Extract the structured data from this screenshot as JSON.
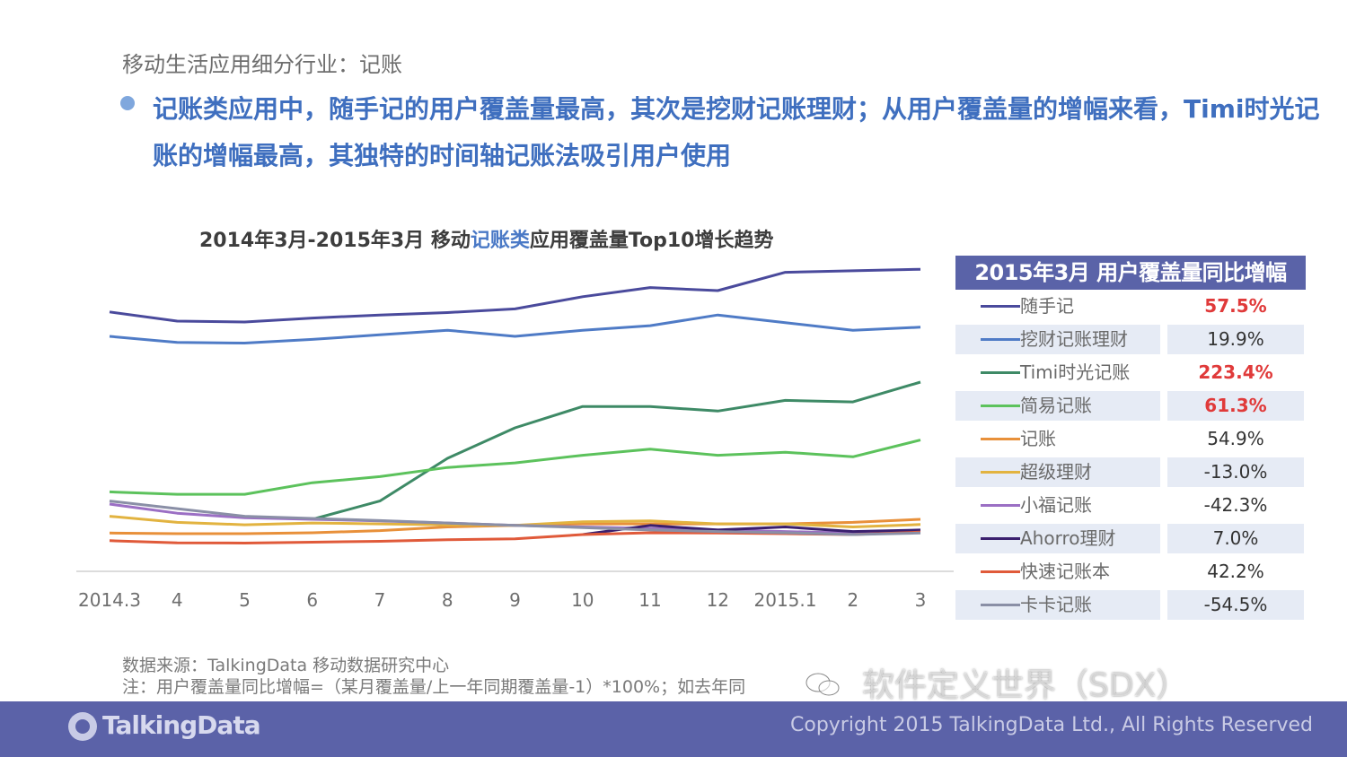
{
  "section_title": "移动生活应用细分行业：记账",
  "headline": "记账类应用中，随手记的用户覆盖量最高，其次是挖财记账理财；从用户覆盖量的增幅来看，Timi时光记账的增幅最高，其独特的时间轴记账法吸引用户使用",
  "chart_title": {
    "part1": "2014年3月-2015年3月  移动",
    "highlight": "记账类",
    "part2": "应用覆盖量Top10增长趋势"
  },
  "chart_data": {
    "type": "line",
    "x": [
      "2014.3",
      "4",
      "5",
      "6",
      "7",
      "8",
      "9",
      "10",
      "11",
      "12",
      "2015.1",
      "2",
      "3"
    ],
    "series": [
      {
        "name": "随手记",
        "color": "#4a4a9c",
        "values": [
          83,
          80,
          79.7,
          81,
          82,
          82.8,
          84,
          88,
          91,
          90,
          96,
          96.5,
          97
        ]
      },
      {
        "name": "挖财记账理财",
        "color": "#4f7bc6",
        "values": [
          75,
          73,
          72.8,
          74,
          75.5,
          77,
          75,
          77,
          78.5,
          82,
          79.5,
          77,
          78
        ]
      },
      {
        "name": "Timi时光记账",
        "color": "#3e8a66",
        "values": [
          null,
          null,
          null,
          15,
          21,
          35,
          45,
          52,
          52,
          50.5,
          54,
          53.5,
          60
        ]
      },
      {
        "name": "简易记账",
        "color": "#5cc25c",
        "values": [
          24,
          23.2,
          23.2,
          27,
          29,
          32,
          33.5,
          36,
          38,
          36,
          37,
          35.5,
          41
        ]
      },
      {
        "name": "记账",
        "color": "#e8903a",
        "values": [
          10.5,
          10.3,
          10.3,
          10.6,
          11.3,
          12.5,
          13,
          13.5,
          13.5,
          13.5,
          13.5,
          14,
          15
        ]
      },
      {
        "name": "超级理财",
        "color": "#e2b340",
        "values": [
          16,
          14,
          13.2,
          13.8,
          13.5,
          13.2,
          13,
          14.2,
          14.5,
          13.5,
          13.5,
          12.5,
          13.3
        ]
      },
      {
        "name": "小福记账",
        "color": "#9b6fc4",
        "values": [
          20,
          17,
          15.5,
          15,
          14.5,
          13.8,
          13,
          12.5,
          12,
          11.5,
          11,
          10.5,
          11
        ]
      },
      {
        "name": "Ahorro理财",
        "color": "#3a1f6e",
        "values": [
          null,
          null,
          null,
          null,
          null,
          null,
          null,
          10,
          13,
          11.5,
          12.5,
          11,
          11.5
        ]
      },
      {
        "name": "快速记账本",
        "color": "#e05a3a",
        "values": [
          8,
          7.3,
          7.2,
          7.5,
          7.8,
          8.3,
          8.6,
          10,
          10.6,
          10.5,
          10.3,
          10,
          10.8
        ]
      },
      {
        "name": "卡卡记账",
        "color": "#8a8fa6",
        "values": [
          21,
          18.5,
          16,
          15.3,
          14.6,
          13.8,
          13,
          12.3,
          11.5,
          11,
          10.6,
          10,
          10.5
        ]
      }
    ],
    "ylim": [
      0,
      100
    ],
    "grid": false,
    "legend": "right table"
  },
  "table": {
    "header": "2015年3月 用户覆盖量同比增幅",
    "rows": [
      {
        "name": "随手记",
        "value": "57.5%",
        "highlight": true
      },
      {
        "name": "挖财记账理财",
        "value": "19.9%",
        "highlight": false
      },
      {
        "name": "Timi时光记账",
        "value": "223.4%",
        "highlight": true
      },
      {
        "name": "简易记账",
        "value": "61.3%",
        "highlight": true
      },
      {
        "name": "记账",
        "value": "54.9%",
        "highlight": false
      },
      {
        "name": "超级理财",
        "value": "-13.0%",
        "highlight": false
      },
      {
        "name": "小福记账",
        "value": "-42.3%",
        "highlight": false
      },
      {
        "name": "Ahorro理财",
        "value": "7.0%",
        "highlight": false
      },
      {
        "name": "快速记账本",
        "value": "42.2%",
        "highlight": false
      },
      {
        "name": "卡卡记账",
        "value": "-54.5%",
        "highlight": false
      }
    ]
  },
  "source": "数据来源：TalkingData 移动数据研究中心",
  "note": "注：用户覆盖量同比增幅=（某月覆盖量/上一年同期覆盖量-1）*100%；如去年同",
  "watermark": "软件定义世界（SDX）",
  "footer": {
    "logo": "TalkingData",
    "copyright": "Copyright 2015 TalkingData Ltd., All Rights Reserved"
  },
  "colors": {
    "accent": "#3f6fbf",
    "footer": "#5b62a8",
    "table_shade": "#e6ebf5",
    "highlight_red": "#e03a3a"
  }
}
